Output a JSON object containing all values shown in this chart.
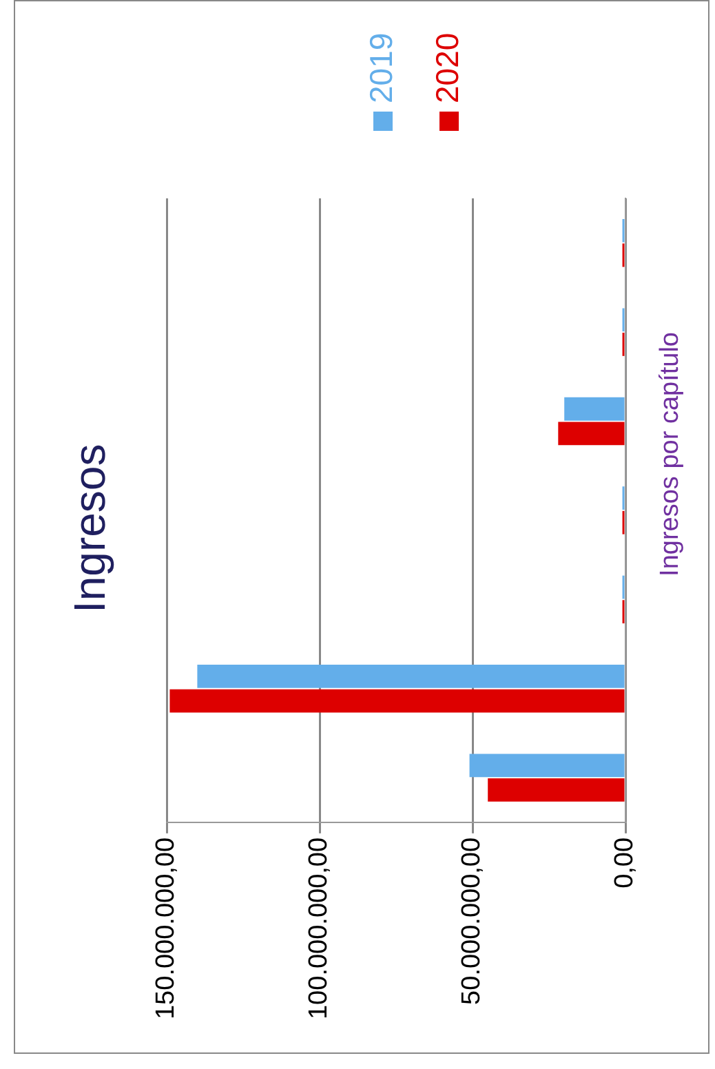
{
  "chart_data": {
    "type": "bar",
    "orientation": "horizontal",
    "title": "Ingresos",
    "ylabel": "Ingresos por capítulo",
    "categories": [
      null,
      null,
      null,
      null,
      null,
      null,
      null
    ],
    "series": [
      {
        "name": "2019",
        "color": "#63aeea",
        "values": [
          1000000,
          1000000,
          20000000,
          1000000,
          1000000,
          140000000,
          51000000
        ]
      },
      {
        "name": "2020",
        "color": "#dd0000",
        "values": [
          1000000,
          1000000,
          22000000,
          1000000,
          1000000,
          149000000,
          45000000
        ]
      }
    ],
    "xlim": [
      150000000,
      0
    ],
    "xticks": [
      {
        "value": 0,
        "label": "0,00"
      },
      {
        "value": 50000000,
        "label": "50.000.000,00"
      },
      {
        "value": 100000000,
        "label": "100.000.000,00"
      },
      {
        "value": 150000000,
        "label": "150.000.000,00"
      }
    ],
    "grid": "x",
    "legend": "top"
  }
}
